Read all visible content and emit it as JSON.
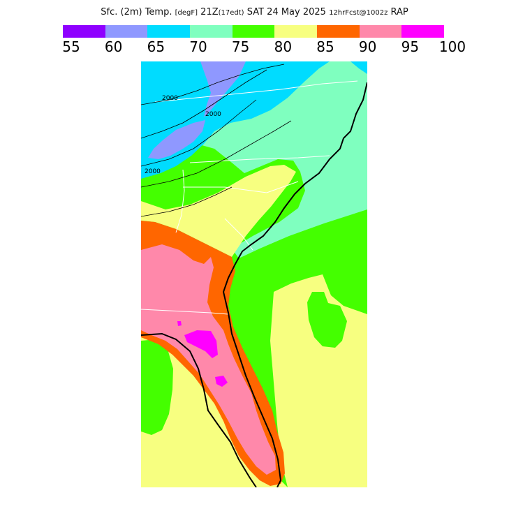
{
  "header": {
    "field": "Sfc. (2m) Temp.",
    "units": "[degF]",
    "valid_time": "21Z",
    "local_time": "(17edt)",
    "date": "SAT 24 May 2025",
    "forecast": "12hrFcst@1002z",
    "model": "RAP"
  },
  "legend": {
    "ticks": [
      "55",
      "60",
      "65",
      "70",
      "75",
      "80",
      "85",
      "90",
      "95",
      "100"
    ],
    "colors": [
      "#8f00ff",
      "#8f98ff",
      "#00dcff",
      "#7fffbf",
      "#44ff00",
      "#f7ff80",
      "#ff6600",
      "#ff88aa",
      "#ff00ff"
    ]
  },
  "map": {
    "contour_labels": [
      "2000",
      "2000",
      "2000"
    ],
    "temperature_fill_colors": {
      "60-65": "#8f98ff",
      "65-70": "#00dcff",
      "70-75": "#7fffbf",
      "75-80": "#44ff00",
      "80-85": "#f7ff80",
      "85-90": "#ff6600",
      "90-95": "#ff88aa",
      "95-100": "#ff00ff"
    }
  }
}
